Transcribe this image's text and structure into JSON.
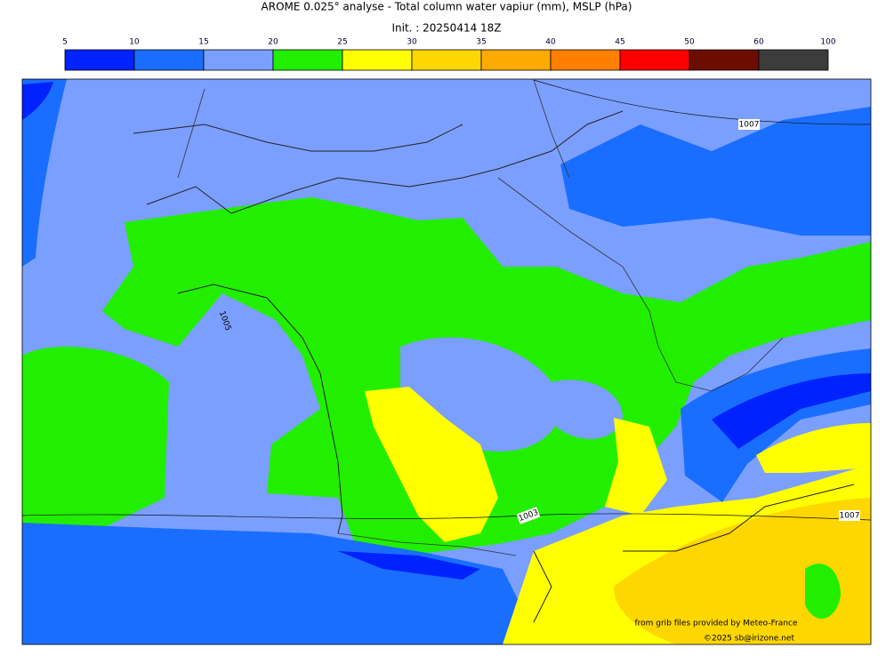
{
  "header": {
    "title": "AROME 0.025° analyse - Total column water vapiur (mm), MSLP (hPa)",
    "init": "Init. : 20250414 18Z"
  },
  "colorbar": {
    "ticks": [
      5,
      10,
      15,
      20,
      25,
      30,
      35,
      40,
      45,
      50,
      60,
      100
    ],
    "colors": [
      "#0022ff",
      "#1a6eff",
      "#7b9fff",
      "#22ee00",
      "#ffff00",
      "#ffd700",
      "#ffaa00",
      "#ff7f00",
      "#ff0000",
      "#6b0d00",
      "#3c3c3c"
    ]
  },
  "isobar_labels": [
    "1007",
    "1003",
    "1007",
    "1005"
  ],
  "credits": [
    "from grib files provided by Meteo-France",
    "©2025 sb@irizone.net"
  ]
}
